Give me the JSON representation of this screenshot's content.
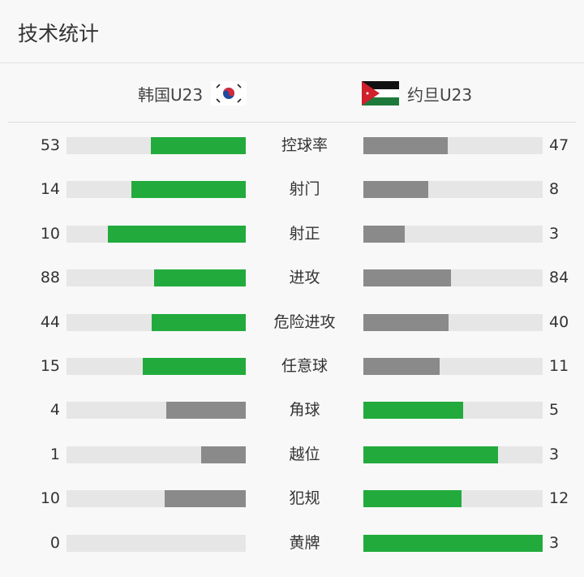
{
  "title": "技术统计",
  "home": {
    "name": "韩国U23",
    "flag": "south-korea-flag-icon"
  },
  "away": {
    "name": "约旦U23",
    "flag": "jordan-flag-icon"
  },
  "colors": {
    "leader": "#22ab3c",
    "trailer": "#8a8a8a",
    "track": "#e6e6e6"
  },
  "stats": [
    {
      "label": "控球率",
      "home": 53,
      "away": 47
    },
    {
      "label": "射门",
      "home": 14,
      "away": 8
    },
    {
      "label": "射正",
      "home": 10,
      "away": 3
    },
    {
      "label": "进攻",
      "home": 88,
      "away": 84
    },
    {
      "label": "危险进攻",
      "home": 44,
      "away": 40
    },
    {
      "label": "任意球",
      "home": 15,
      "away": 11
    },
    {
      "label": "角球",
      "home": 4,
      "away": 5
    },
    {
      "label": "越位",
      "home": 1,
      "away": 3
    },
    {
      "label": "犯规",
      "home": 10,
      "away": 12
    },
    {
      "label": "黄牌",
      "home": 0,
      "away": 3
    }
  ]
}
